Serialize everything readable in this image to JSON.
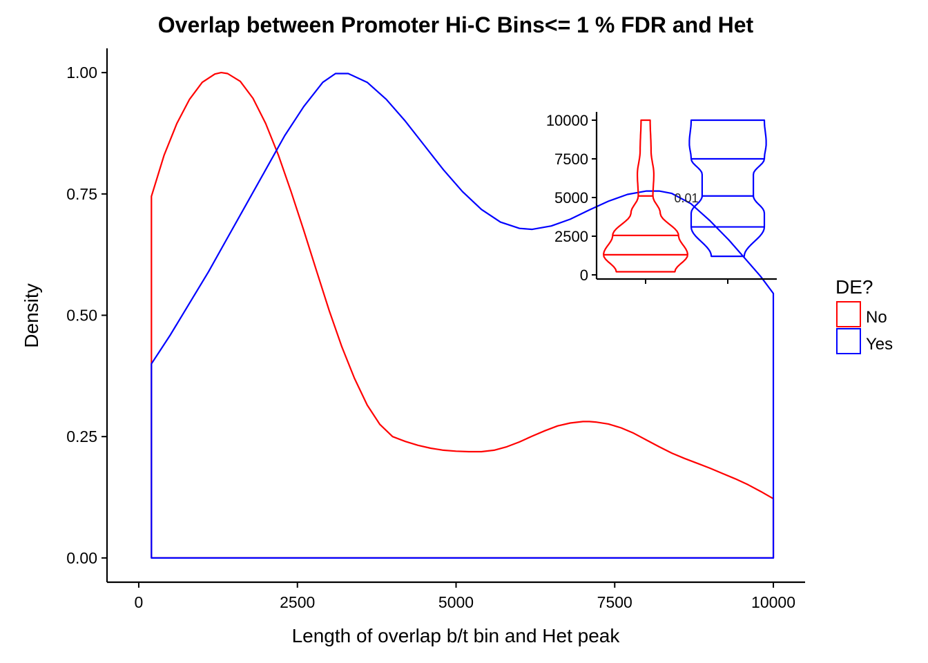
{
  "chart_data": [
    {
      "type": "line",
      "chart_kind": "density",
      "title": "Overlap between Promoter Hi-C Bins<= 1 % FDR and Het",
      "xlabel": "Length of overlap b/t bin and Het peak",
      "ylabel": "Density",
      "xlim": [
        -500,
        10500
      ],
      "ylim": [
        -0.05,
        1.05
      ],
      "xticks": [
        0,
        2500,
        5000,
        7500,
        10000
      ],
      "xtick_labels": [
        "0",
        "2500",
        "5000",
        "7500",
        "10000"
      ],
      "yticks": [
        0,
        0.25,
        0.5,
        0.75,
        1.0
      ],
      "ytick_labels": [
        "0.00",
        "0.25",
        "0.50",
        "0.75",
        "1.00"
      ],
      "grid": false,
      "legend": {
        "title": "DE?",
        "position": "right",
        "entries": [
          {
            "label": "No",
            "color": "#ff0000"
          },
          {
            "label": "Yes",
            "color": "#0000ff"
          }
        ]
      },
      "series": [
        {
          "name": "No",
          "color": "#ff0000",
          "x": [
            200,
            400,
            600,
            800,
            1000,
            1200,
            1300,
            1400,
            1600,
            1800,
            2000,
            2200,
            2400,
            2600,
            2800,
            3000,
            3200,
            3400,
            3600,
            3800,
            4000,
            4200,
            4400,
            4600,
            4800,
            5000,
            5200,
            5400,
            5600,
            5800,
            6000,
            6200,
            6400,
            6600,
            6800,
            7000,
            7100,
            7200,
            7400,
            7600,
            7800,
            8000,
            8200,
            8400,
            8600,
            8800,
            9000,
            9200,
            9400,
            9600,
            9800,
            10000
          ],
          "y": [
            0.745,
            0.83,
            0.895,
            0.945,
            0.98,
            0.997,
            1.0,
            0.998,
            0.982,
            0.947,
            0.895,
            0.83,
            0.755,
            0.675,
            0.592,
            0.51,
            0.435,
            0.37,
            0.315,
            0.275,
            0.25,
            0.24,
            0.232,
            0.226,
            0.222,
            0.22,
            0.219,
            0.219,
            0.222,
            0.229,
            0.239,
            0.251,
            0.262,
            0.272,
            0.278,
            0.281,
            0.281,
            0.28,
            0.276,
            0.268,
            0.257,
            0.243,
            0.229,
            0.216,
            0.205,
            0.195,
            0.185,
            0.174,
            0.163,
            0.151,
            0.137,
            0.122
          ]
        },
        {
          "name": "Yes",
          "color": "#0000ff",
          "x": [
            200,
            500,
            800,
            1100,
            1400,
            1700,
            2000,
            2300,
            2600,
            2900,
            3100,
            3300,
            3600,
            3900,
            4200,
            4500,
            4800,
            5100,
            5400,
            5700,
            6000,
            6200,
            6500,
            6800,
            7100,
            7400,
            7700,
            8000,
            8200,
            8400,
            8700,
            9000,
            9300,
            9600,
            9800,
            10000
          ],
          "y": [
            0.4,
            0.46,
            0.525,
            0.59,
            0.66,
            0.73,
            0.8,
            0.87,
            0.93,
            0.98,
            0.998,
            0.998,
            0.98,
            0.945,
            0.9,
            0.85,
            0.8,
            0.755,
            0.718,
            0.692,
            0.679,
            0.677,
            0.684,
            0.698,
            0.717,
            0.735,
            0.749,
            0.756,
            0.756,
            0.751,
            0.73,
            0.695,
            0.655,
            0.61,
            0.58,
            0.545
          ]
        }
      ]
    },
    {
      "type": "violin",
      "inset": true,
      "categories": [
        "No",
        "Yes"
      ],
      "ylim": [
        0,
        10000
      ],
      "yticks": [
        0,
        2500,
        5000,
        7500,
        10000
      ],
      "ytick_labels": [
        "0",
        "2500",
        "5000",
        "7500",
        "10000"
      ],
      "annotation": "0.01",
      "series": [
        {
          "name": "No",
          "color": "#ff0000",
          "quantiles": [
            1300,
            2550,
            5100
          ],
          "profile": [
            [
              200,
              0.16
            ],
            [
              1300,
              0.23
            ],
            [
              2550,
              0.18
            ],
            [
              4000,
              0.08
            ],
            [
              5100,
              0.04
            ],
            [
              6500,
              0.045
            ],
            [
              8000,
              0.03
            ],
            [
              10000,
              0.025
            ]
          ]
        },
        {
          "name": "Yes",
          "color": "#0000ff",
          "quantiles": [
            3100,
            5100,
            7500
          ],
          "profile": [
            [
              1200,
              0.09
            ],
            [
              3100,
              0.2
            ],
            [
              4000,
              0.2
            ],
            [
              5100,
              0.14
            ],
            [
              6500,
              0.14
            ],
            [
              7500,
              0.2
            ],
            [
              8500,
              0.21
            ],
            [
              10000,
              0.2
            ]
          ]
        }
      ]
    }
  ]
}
